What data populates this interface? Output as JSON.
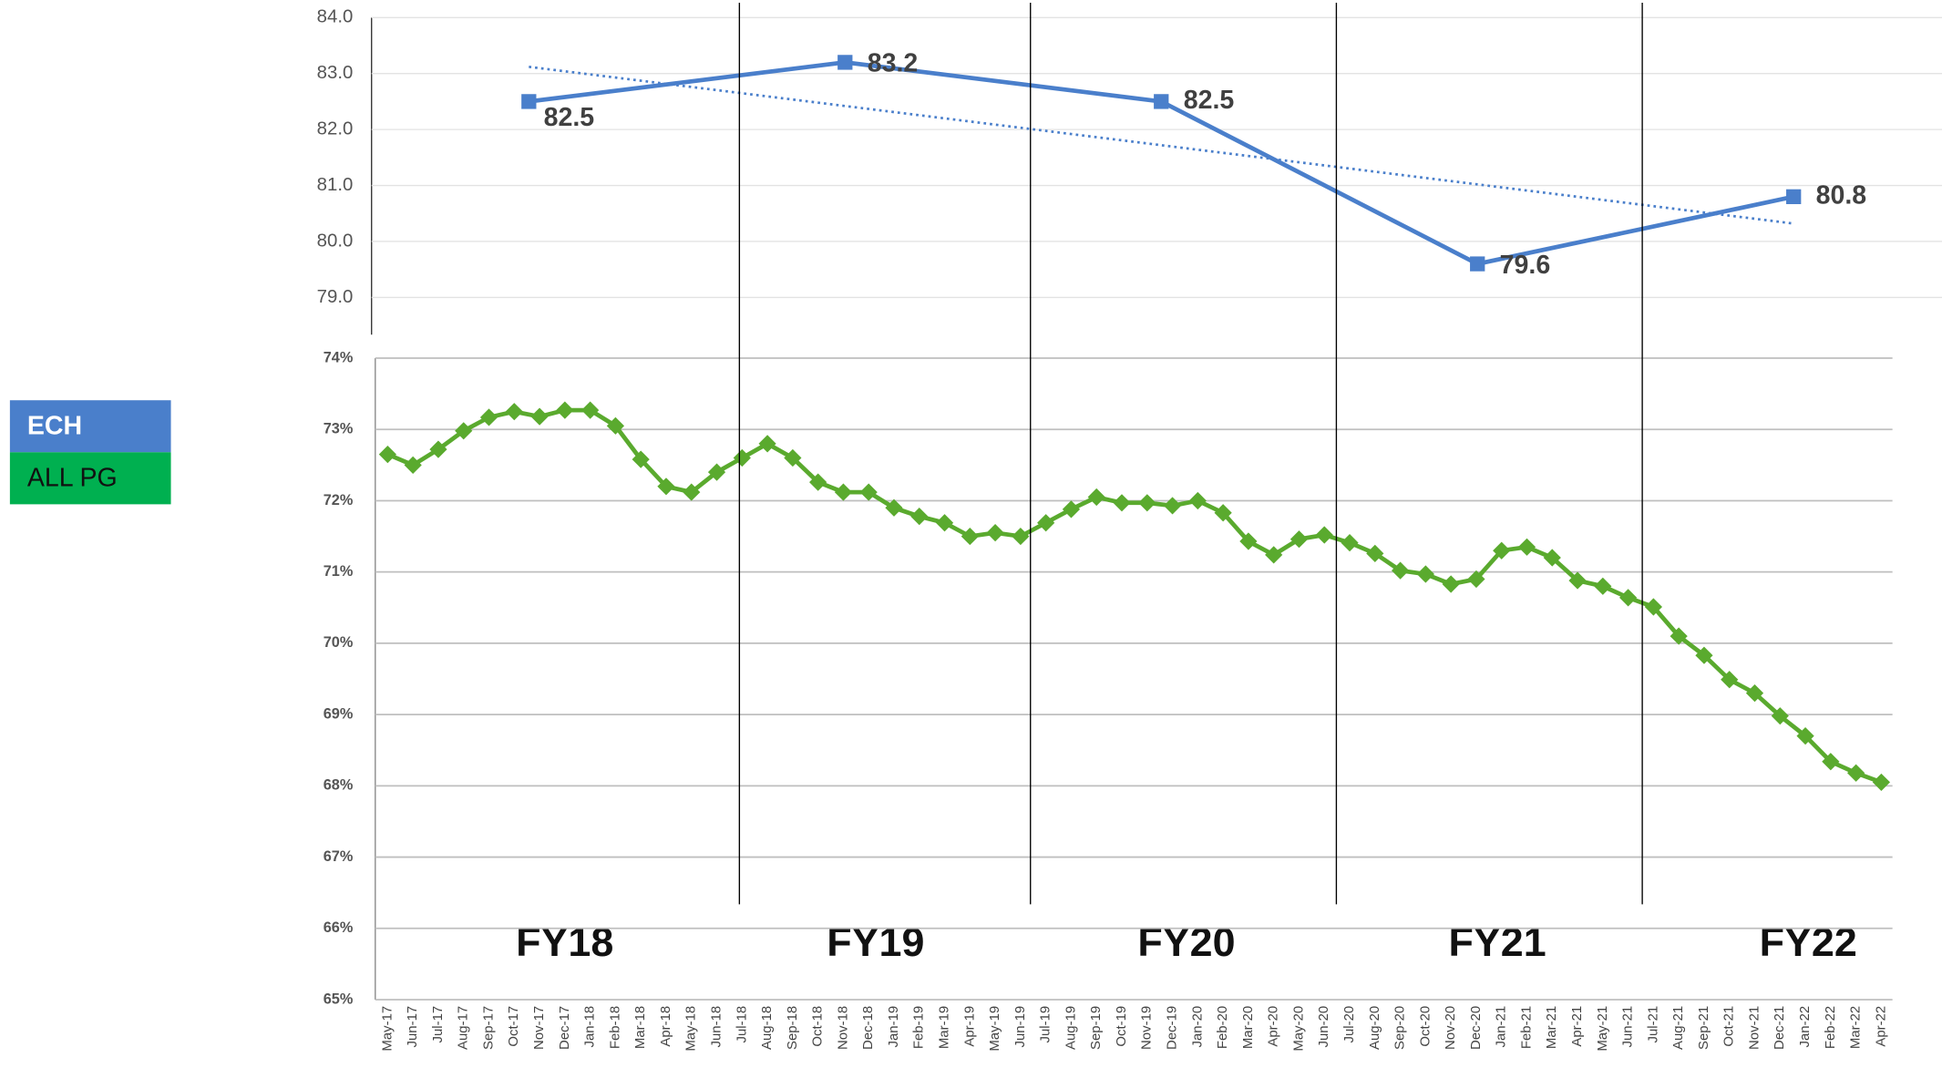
{
  "chart_data": [
    {
      "type": "line",
      "categories": [
        "FY18",
        "FY19",
        "FY20",
        "FY21",
        "FY22"
      ],
      "series": [
        {
          "name": "ECH",
          "color": "#4a7fcb",
          "values": [
            82.5,
            83.2,
            82.5,
            79.6,
            80.8
          ]
        }
      ],
      "ylim": [
        79,
        84
      ],
      "yticks": [
        {
          "value": 84,
          "label": "84.0"
        },
        {
          "value": 83,
          "label": "83.0"
        },
        {
          "value": 82,
          "label": "82.0"
        },
        {
          "value": 81,
          "label": "81.0"
        },
        {
          "value": 80,
          "label": "80.0"
        },
        {
          "value": 79,
          "label": "79.0"
        }
      ],
      "grid": true,
      "trendline": true
    },
    {
      "type": "line",
      "categories": [
        "May-17",
        "Jun-17",
        "Jul-17",
        "Aug-17",
        "Sep-17",
        "Oct-17",
        "Nov-17",
        "Dec-17",
        "Jan-18",
        "Feb-18",
        "Mar-18",
        "Apr-18",
        "May-18",
        "Jun-18",
        "Jul-18",
        "Aug-18",
        "Sep-18",
        "Oct-18",
        "Nov-18",
        "Dec-18",
        "Jan-19",
        "Feb-19",
        "Mar-19",
        "Apr-19",
        "May-19",
        "Jun-19",
        "Jul-19",
        "Aug-19",
        "Sep-19",
        "Oct-19",
        "Nov-19",
        "Dec-19",
        "Jan-20",
        "Feb-20",
        "Mar-20",
        "Apr-20",
        "May-20",
        "Jun-20",
        "Jul-20",
        "Aug-20",
        "Sep-20",
        "Oct-20",
        "Nov-20",
        "Dec-20",
        "Jan-21",
        "Feb-21",
        "Mar-21",
        "Apr-21",
        "May-21",
        "Jun-21",
        "Jul-21",
        "Aug-21",
        "Sep-21",
        "Oct-21",
        "Nov-21",
        "Dec-21",
        "Jan-22",
        "Feb-22",
        "Mar-22",
        "Apr-22"
      ],
      "series": [
        {
          "name": "ALL PG",
          "color": "#5aaa2e",
          "values": [
            72.65,
            72.5,
            72.72,
            72.98,
            73.17,
            73.25,
            73.18,
            73.27,
            73.27,
            73.05,
            72.58,
            72.2,
            72.12,
            72.4,
            72.6,
            72.8,
            72.6,
            72.26,
            72.12,
            72.12,
            71.9,
            71.78,
            71.69,
            71.5,
            71.55,
            71.5,
            71.69,
            71.88,
            72.05,
            71.97,
            71.97,
            71.93,
            72.0,
            71.83,
            71.43,
            71.24,
            71.46,
            71.52,
            71.41,
            71.26,
            71.02,
            70.97,
            70.83,
            70.9,
            71.3,
            71.35,
            71.2,
            70.88,
            70.8,
            70.64,
            70.51,
            70.1,
            69.83,
            69.49,
            69.3,
            68.98,
            68.7,
            68.34,
            68.18,
            68.05
          ]
        }
      ],
      "ylim": [
        65,
        74
      ],
      "yticks": [
        {
          "value": 74,
          "label": "74%"
        },
        {
          "value": 73,
          "label": "73%"
        },
        {
          "value": 72,
          "label": "72%"
        },
        {
          "value": 71,
          "label": "71%"
        },
        {
          "value": 70,
          "label": "70%"
        },
        {
          "value": 69,
          "label": "69%"
        },
        {
          "value": 68,
          "label": "68%"
        },
        {
          "value": 67,
          "label": "67%"
        },
        {
          "value": 66,
          "label": "66%"
        },
        {
          "value": 65,
          "label": "65%"
        }
      ],
      "grid": true
    }
  ]
}
